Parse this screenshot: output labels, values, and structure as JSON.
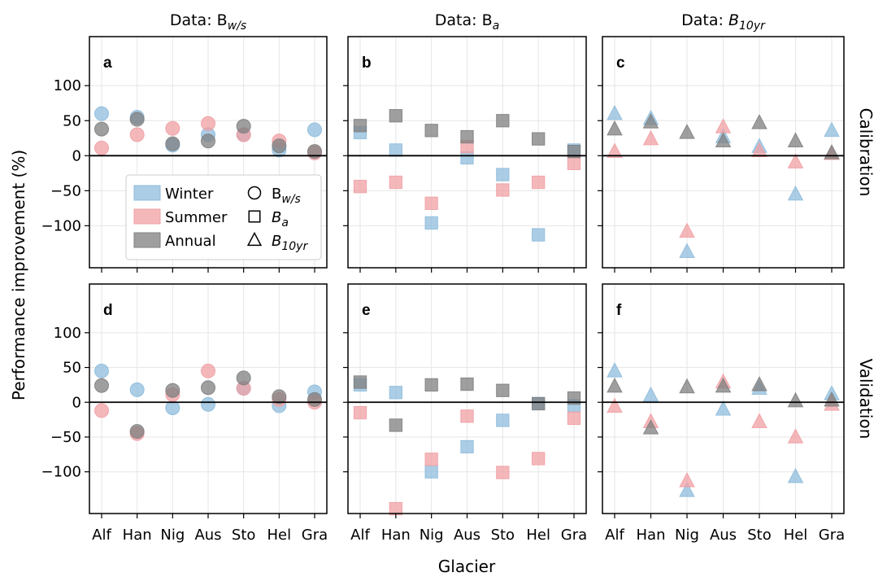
{
  "chart_data": {
    "type": "scatter",
    "xlabel": "Glacier",
    "ylabel": "Performance improvement (%)",
    "categories": [
      "Alf",
      "Han",
      "Nig",
      "Aus",
      "Sto",
      "Hel",
      "Gra"
    ],
    "yticks": [
      -100,
      -50,
      0,
      50,
      100
    ],
    "ylim": [
      -160,
      170
    ],
    "grid": true,
    "colors": {
      "Winter": "#8fbcdc",
      "Summer": "#f0a0a4",
      "Annual": "#7f7f7f"
    },
    "columns": [
      {
        "prefix": "Data: ",
        "main": "B",
        "sub": "w/s",
        "italic_main": false
      },
      {
        "prefix": "Data: ",
        "main": "B",
        "sub": "a",
        "italic_main": false
      },
      {
        "prefix": "Data: ",
        "main": "B",
        "sub": "10yr",
        "italic_main": true
      }
    ],
    "rows": [
      "Calibration",
      "Validation"
    ],
    "legend": {
      "placement": "panel-a-lower-center",
      "series": [
        "Winter",
        "Summer",
        "Annual"
      ],
      "markers": [
        {
          "shape": "circle",
          "main": "B",
          "sub": "w/s",
          "italic_main": false
        },
        {
          "shape": "square",
          "main": "B",
          "sub": "a",
          "italic_main": true
        },
        {
          "shape": "triangle",
          "main": "B",
          "sub": "10yr",
          "italic_main": true
        }
      ]
    },
    "panels": [
      {
        "label": "a",
        "marker": "circle",
        "series": [
          {
            "name": "Winter",
            "values": [
              60,
              55,
              15,
              30,
              30,
              8,
              37
            ]
          },
          {
            "name": "Summer",
            "values": [
              11,
              30,
              39,
              46,
              30,
              21,
              4
            ]
          },
          {
            "name": "Annual",
            "values": [
              38,
              52,
              17,
              21,
              42,
              14,
              6
            ]
          }
        ]
      },
      {
        "label": "b",
        "marker": "square",
        "series": [
          {
            "name": "Winter",
            "values": [
              33,
              8,
              -96,
              -3,
              -27,
              -113,
              8
            ]
          },
          {
            "name": "Summer",
            "values": [
              -44,
              -38,
              -68,
              13,
              -49,
              -38,
              -11
            ]
          },
          {
            "name": "Annual",
            "values": [
              43,
              57,
              36,
              27,
              50,
              24,
              6
            ]
          }
        ]
      },
      {
        "label": "c",
        "marker": "triangle",
        "series": [
          {
            "name": "Winter",
            "values": [
              60,
              53,
              -137,
              27,
              13,
              -55,
              36
            ]
          },
          {
            "name": "Summer",
            "values": [
              6,
              24,
              -108,
              41,
              7,
              -9,
              3
            ]
          },
          {
            "name": "Annual",
            "values": [
              38,
              48,
              33,
              21,
              47,
              21,
              4
            ]
          }
        ]
      },
      {
        "label": "d",
        "marker": "circle",
        "series": [
          {
            "name": "Winter",
            "values": [
              45,
              18,
              -8,
              -3,
              20,
              -5,
              15
            ]
          },
          {
            "name": "Summer",
            "values": [
              -12,
              -45,
              11,
              45,
              20,
              4,
              0
            ]
          },
          {
            "name": "Annual",
            "values": [
              24,
              -42,
              17,
              21,
              35,
              8,
              4
            ]
          }
        ]
      },
      {
        "label": "e",
        "marker": "square",
        "series": [
          {
            "name": "Winter",
            "values": [
              25,
              14,
              -100,
              -64,
              -26,
              -2,
              -5
            ]
          },
          {
            "name": "Summer",
            "values": [
              -15,
              -153,
              -82,
              -20,
              -101,
              -81,
              -23
            ]
          },
          {
            "name": "Annual",
            "values": [
              29,
              -33,
              25,
              26,
              17,
              -2,
              6
            ]
          }
        ]
      },
      {
        "label": "f",
        "marker": "triangle",
        "series": [
          {
            "name": "Winter",
            "values": [
              45,
              10,
              -127,
              -10,
              20,
              -107,
              12
            ]
          },
          {
            "name": "Summer",
            "values": [
              -6,
              -28,
              -113,
              29,
              -28,
              -50,
              -3
            ]
          },
          {
            "name": "Annual",
            "values": [
              23,
              -37,
              22,
              23,
              25,
              2,
              3
            ]
          }
        ]
      }
    ]
  }
}
